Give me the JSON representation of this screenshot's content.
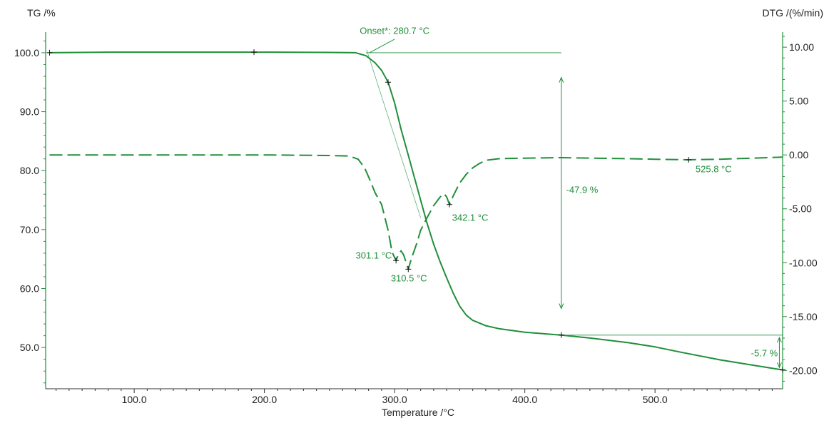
{
  "chart_data": {
    "type": "line",
    "title": "",
    "xlabel": "Temperature /°C",
    "ylabel_left": "TG /%",
    "ylabel_right": "DTG /(%/min)",
    "xlim": [
      32,
      598
    ],
    "ylim_left": [
      43.0,
      103.5
    ],
    "ylim_right": [
      -21.7,
      11.4
    ],
    "x_ticks": [
      "100.0",
      "200.0",
      "300.0",
      "400.0",
      "500.0"
    ],
    "y_left_ticks": [
      "100.0",
      "90.0",
      "80.0",
      "70.0",
      "60.0",
      "50.0"
    ],
    "y_right_ticks": [
      "10.00",
      "5.00",
      "0.00",
      "-5.00",
      "-10.00",
      "-15.00",
      "-20.00"
    ],
    "grid": false,
    "line_color": "#1f8f3a",
    "series": [
      {
        "axis": "left",
        "style": "solid",
        "x": [
          35,
          80,
          150,
          200,
          250,
          270,
          278,
          285,
          290,
          295,
          300,
          305,
          310,
          315,
          320,
          325,
          330,
          335,
          340,
          345,
          350,
          355,
          360,
          370,
          380,
          400,
          428,
          450,
          480,
          500,
          520,
          550,
          575,
          598
        ],
        "y": [
          100.0,
          100.1,
          100.1,
          100.1,
          100.05,
          100.0,
          99.5,
          98.3,
          97.0,
          95.0,
          91.5,
          87.0,
          83.0,
          79.0,
          75.0,
          71.0,
          67.5,
          64.5,
          61.8,
          59.2,
          57.0,
          55.5,
          54.6,
          53.7,
          53.2,
          52.6,
          52.1,
          51.6,
          50.8,
          50.1,
          49.2,
          47.9,
          47.0,
          46.2
        ]
      },
      {
        "axis": "right",
        "style": "dashed",
        "x": [
          35,
          100,
          200,
          250,
          265,
          272,
          277,
          282,
          285,
          290,
          295,
          298,
          301.1,
          303,
          305,
          307,
          310.5,
          313,
          317,
          320,
          325,
          330,
          335,
          338,
          340,
          342.1,
          345,
          350,
          355,
          360,
          365,
          370,
          380,
          400,
          428,
          450,
          480,
          500,
          525.8,
          550,
          575,
          598
        ],
        "y": [
          0.0,
          0.0,
          0.0,
          -0.05,
          -0.1,
          -0.4,
          -1.2,
          -2.6,
          -3.5,
          -4.6,
          -7.0,
          -9.0,
          -9.8,
          -9.2,
          -8.9,
          -9.3,
          -10.6,
          -9.6,
          -8.2,
          -7.0,
          -5.8,
          -4.7,
          -3.9,
          -3.6,
          -3.9,
          -4.6,
          -3.8,
          -2.6,
          -1.8,
          -1.2,
          -0.8,
          -0.5,
          -0.35,
          -0.3,
          -0.25,
          -0.3,
          -0.35,
          -0.4,
          -0.45,
          -0.4,
          -0.3,
          -0.2
        ]
      }
    ],
    "markers": [
      {
        "axis": "left",
        "x": 35,
        "y": 100.0
      },
      {
        "axis": "left",
        "x": 192,
        "y": 100.1
      },
      {
        "axis": "left",
        "x": 295,
        "y": 95.0
      },
      {
        "axis": "left",
        "x": 428,
        "y": 52.1
      },
      {
        "axis": "left",
        "x": 598,
        "y": 46.2
      },
      {
        "axis": "right",
        "x": 301.1,
        "y": -9.8
      },
      {
        "axis": "right",
        "x": 310.5,
        "y": -10.6
      },
      {
        "axis": "right",
        "x": 342.1,
        "y": -4.6
      },
      {
        "axis": "right",
        "x": 525.8,
        "y": -0.45
      }
    ],
    "annotations": [
      {
        "text": "Onset*: 280.7 °C",
        "x": 300.0,
        "y": 103.2,
        "align": "middle"
      },
      {
        "text": "301.1 °C",
        "x": 284.0,
        "y": 65.1,
        "align": "middle"
      },
      {
        "text": "310.5 °C",
        "x": 311.0,
        "y": 61.2,
        "align": "middle"
      },
      {
        "text": "342.1 °C",
        "x": 358.0,
        "y": 71.5,
        "align": "middle"
      },
      {
        "text": "525.8 °C",
        "x": 545.0,
        "y": 79.7,
        "align": "middle"
      },
      {
        "text": "-47.9 %",
        "x": 444.0,
        "y": 76.2,
        "align": "middle"
      },
      {
        "text": "-5.7 %",
        "x": 584.0,
        "y": 48.5,
        "align": "middle"
      }
    ],
    "reference_lines": [
      {
        "axis": "left",
        "x1": 278,
        "y1": 100.0,
        "x2": 428,
        "y2": 100.0
      },
      {
        "axis": "left",
        "x1": 428,
        "y1": 52.1,
        "x2": 598,
        "y2": 52.1
      },
      {
        "axis": "left",
        "x1": 280.7,
        "y1": 100.0,
        "x2": 300.0,
        "y2": 102.3
      }
    ],
    "tangent_lines": [
      {
        "axis": "left",
        "x1": 278.5,
        "y1": 100.5,
        "x2": 320.0,
        "y2": 72.0
      }
    ],
    "double_arrows": [
      {
        "axis": "left",
        "x": 428,
        "y1": 95.8,
        "y2": 56.6
      },
      {
        "axis": "left",
        "x": 595.5,
        "y1": 51.7,
        "y2": 46.6
      }
    ]
  }
}
